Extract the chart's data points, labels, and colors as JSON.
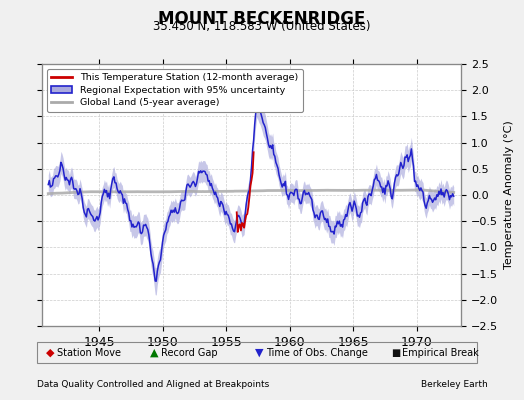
{
  "title": "MOUNT BECKENRIDGE",
  "subtitle": "35.450 N, 118.583 W (United States)",
  "xlabel_left": "Data Quality Controlled and Aligned at Breakpoints",
  "xlabel_right": "Berkeley Earth",
  "ylabel": "Temperature Anomaly (°C)",
  "xlim": [
    1940.5,
    1973.5
  ],
  "ylim": [
    -2.5,
    2.5
  ],
  "xticks": [
    1945,
    1950,
    1955,
    1960,
    1965,
    1970
  ],
  "yticks_left": [
    -2.5,
    -2,
    -1.5,
    -1,
    -0.5,
    0,
    0.5,
    1,
    1.5,
    2,
    2.5
  ],
  "yticks_right": [
    -2.5,
    -2,
    -1.5,
    -1,
    -0.5,
    0,
    0.5,
    1,
    1.5,
    2,
    2.5
  ],
  "background_color": "#f0f0f0",
  "plot_background": "#ffffff",
  "grid_color": "#cccccc",
  "regional_color": "#2222cc",
  "regional_fill_color": "#aaaadd",
  "station_color": "#cc0000",
  "global_color": "#aaaaaa",
  "time_of_obs_marker_color": "#2222cc",
  "station_move_color": "#cc0000",
  "record_gap_color": "#007700",
  "empirical_break_color": "#111111",
  "spine_color": "#888888"
}
